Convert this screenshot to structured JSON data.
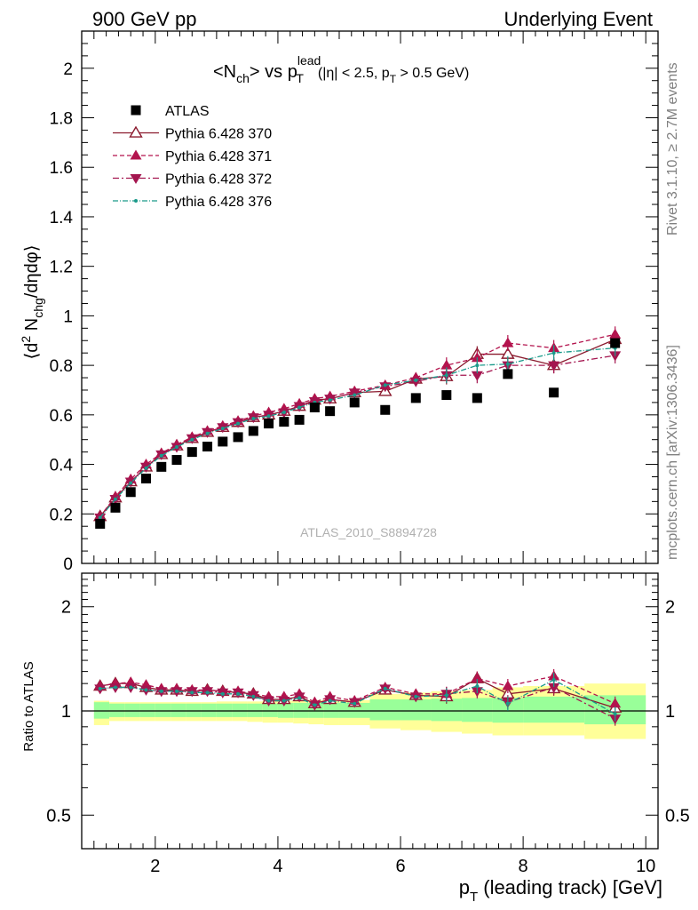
{
  "header": {
    "left": "900 GeV pp",
    "right": "Underlying Event"
  },
  "side_labels": {
    "rivet": "Rivet 3.1.10, ≥ 2.7M events",
    "mcplots": "mcplots.cern.ch [arXiv:1306.3436]"
  },
  "chart_data": [
    {
      "panel": "main",
      "type": "scatter",
      "title": {
        "main_a": "<N",
        "main_a_sub": "ch",
        "main_b": "> vs p",
        "main_b_sup": "lead",
        "main_b_sub": "T",
        "cuts_a": "(|η| < 2.5, p",
        "cuts_sub": "T",
        "cuts_b": " > 0.5 GeV)"
      },
      "ylabel": {
        "a": "⟨d",
        "sup2": "2",
        "b": " N",
        "sub": "chg",
        "c": "/dηdφ⟩"
      },
      "watermark": "ATLAS_2010_S8894728",
      "xlim": [
        0.8,
        10.2
      ],
      "ylim": [
        0,
        2.15
      ],
      "x_ticks": [
        2,
        4,
        6,
        8,
        10
      ],
      "y_ticks": [
        {
          "v": 0,
          "label": "0"
        },
        {
          "v": 0.2,
          "label": "0.2"
        },
        {
          "v": 0.4,
          "label": "0.4"
        },
        {
          "v": 0.6,
          "label": "0.6"
        },
        {
          "v": 0.8,
          "label": "0.8"
        },
        {
          "v": 1.0,
          "label": "1"
        },
        {
          "v": 1.2,
          "label": "1.2"
        },
        {
          "v": 1.4,
          "label": "1.4"
        },
        {
          "v": 1.6,
          "label": "1.6"
        },
        {
          "v": 1.8,
          "label": "1.8"
        },
        {
          "v": 2.0,
          "label": "2"
        }
      ],
      "legend_position": "top-left",
      "x": [
        1.1,
        1.35,
        1.6,
        1.85,
        2.1,
        2.35,
        2.6,
        2.85,
        3.1,
        3.35,
        3.6,
        3.85,
        4.1,
        4.35,
        4.6,
        4.85,
        5.25,
        5.75,
        6.25,
        6.75,
        7.25,
        7.75,
        8.5,
        9.5
      ],
      "series": [
        {
          "name": "ATLAS",
          "color": "#000000",
          "marker": "square",
          "values": [
            0.16,
            0.225,
            0.288,
            0.343,
            0.39,
            0.418,
            0.45,
            0.472,
            0.492,
            0.51,
            0.535,
            0.565,
            0.572,
            0.58,
            0.63,
            0.615,
            0.65,
            0.62,
            0.668,
            0.68,
            0.668,
            0.765,
            0.69,
            0.89
          ]
        },
        {
          "name": "Pythia 6.428 370",
          "color": "#8b1a2e",
          "marker": "triangle-up-open",
          "dash": "",
          "values": [
            0.19,
            0.265,
            0.33,
            0.39,
            0.44,
            0.475,
            0.505,
            0.53,
            0.55,
            0.57,
            0.59,
            0.6,
            0.615,
            0.635,
            0.66,
            0.665,
            0.69,
            0.695,
            0.745,
            0.755,
            0.845,
            0.845,
            0.8,
            0.905
          ]
        },
        {
          "name": "Pythia 6.428 371",
          "color": "#b3134d",
          "marker": "triangle-up",
          "dash": "5,3",
          "values": [
            0.19,
            0.27,
            0.34,
            0.4,
            0.445,
            0.48,
            0.51,
            0.535,
            0.555,
            0.575,
            0.595,
            0.61,
            0.625,
            0.645,
            0.665,
            0.675,
            0.695,
            0.72,
            0.75,
            0.8,
            0.83,
            0.89,
            0.87,
            0.925
          ]
        },
        {
          "name": "Pythia 6.428 372",
          "color": "#a4154f",
          "marker": "triangle-down",
          "dash": "7,3,2,3",
          "values": [
            0.185,
            0.26,
            0.33,
            0.39,
            0.44,
            0.47,
            0.505,
            0.53,
            0.55,
            0.57,
            0.59,
            0.6,
            0.61,
            0.635,
            0.655,
            0.665,
            0.69,
            0.715,
            0.735,
            0.76,
            0.76,
            0.8,
            0.8,
            0.84
          ]
        },
        {
          "name": "Pythia 6.428 376",
          "color": "#1a9a8a",
          "marker": "dot",
          "dash": "6,2,1,2",
          "values": [
            0.185,
            0.26,
            0.325,
            0.385,
            0.435,
            0.47,
            0.5,
            0.525,
            0.545,
            0.565,
            0.585,
            0.595,
            0.61,
            0.63,
            0.65,
            0.66,
            0.68,
            0.72,
            0.74,
            0.76,
            0.8,
            0.805,
            0.85,
            0.87
          ]
        }
      ]
    },
    {
      "panel": "ratio",
      "type": "scatter",
      "ylabel": "Ratio to ATLAS",
      "scale": "log",
      "ylim": [
        0.4,
        2.5
      ],
      "y_ticks": [
        {
          "v": 0.5,
          "label": "0.5"
        },
        {
          "v": 1,
          "label": "1"
        },
        {
          "v": 2,
          "label": "2"
        }
      ],
      "xlabel": {
        "a": "p",
        "sub": "T",
        "b": " (leading track) [GeV]"
      },
      "band_edges": [
        1.0,
        1.25,
        1.5,
        1.75,
        2.0,
        2.25,
        2.5,
        2.75,
        3.0,
        3.25,
        3.5,
        3.75,
        4.0,
        4.25,
        4.5,
        4.75,
        5.0,
        5.5,
        6.0,
        6.5,
        7.0,
        7.5,
        8.0,
        9.0,
        10.0
      ],
      "band_stat_lo": [
        0.95,
        0.96,
        0.96,
        0.96,
        0.96,
        0.96,
        0.96,
        0.96,
        0.96,
        0.96,
        0.96,
        0.96,
        0.955,
        0.955,
        0.955,
        0.955,
        0.955,
        0.94,
        0.94,
        0.935,
        0.93,
        0.925,
        0.925,
        0.915
      ],
      "band_stat_hi": [
        1.06,
        1.05,
        1.05,
        1.05,
        1.05,
        1.05,
        1.05,
        1.05,
        1.05,
        1.05,
        1.05,
        1.05,
        1.055,
        1.055,
        1.055,
        1.055,
        1.055,
        1.08,
        1.08,
        1.085,
        1.09,
        1.09,
        1.1,
        1.11
      ],
      "band_tot_lo": [
        0.91,
        0.935,
        0.935,
        0.935,
        0.935,
        0.935,
        0.935,
        0.935,
        0.935,
        0.935,
        0.93,
        0.925,
        0.925,
        0.92,
        0.915,
        0.91,
        0.91,
        0.89,
        0.88,
        0.87,
        0.86,
        0.85,
        0.85,
        0.83
      ],
      "band_tot_hi": [
        1.07,
        1.06,
        1.06,
        1.06,
        1.06,
        1.06,
        1.06,
        1.06,
        1.065,
        1.065,
        1.065,
        1.07,
        1.07,
        1.07,
        1.075,
        1.075,
        1.075,
        1.12,
        1.13,
        1.14,
        1.15,
        1.17,
        1.18,
        1.2
      ],
      "series": [
        {
          "name": "Pythia 6.428 370",
          "values": [
            1.18,
            1.2,
            1.2,
            1.17,
            1.15,
            1.15,
            1.14,
            1.15,
            1.14,
            1.13,
            1.12,
            1.08,
            1.08,
            1.1,
            1.05,
            1.08,
            1.06,
            1.15,
            1.11,
            1.1,
            1.24,
            1.12,
            1.16,
            1.02
          ]
        },
        {
          "name": "Pythia 6.428 371",
          "values": [
            1.18,
            1.2,
            1.21,
            1.19,
            1.16,
            1.16,
            1.15,
            1.15,
            1.14,
            1.14,
            1.12,
            1.1,
            1.1,
            1.12,
            1.06,
            1.1,
            1.07,
            1.17,
            1.12,
            1.12,
            1.24,
            1.18,
            1.26,
            1.05
          ]
        },
        {
          "name": "Pythia 6.428 372",
          "values": [
            1.16,
            1.17,
            1.17,
            1.15,
            1.14,
            1.14,
            1.14,
            1.14,
            1.13,
            1.13,
            1.11,
            1.07,
            1.07,
            1.1,
            1.04,
            1.08,
            1.06,
            1.16,
            1.1,
            1.12,
            1.14,
            1.06,
            1.17,
            0.95
          ]
        },
        {
          "name": "Pythia 6.428 376",
          "values": [
            1.16,
            1.17,
            1.17,
            1.15,
            1.14,
            1.14,
            1.13,
            1.13,
            1.12,
            1.12,
            1.1,
            1.07,
            1.07,
            1.09,
            1.04,
            1.07,
            1.05,
            1.16,
            1.1,
            1.11,
            1.18,
            1.05,
            1.23,
            0.98
          ]
        }
      ]
    }
  ]
}
